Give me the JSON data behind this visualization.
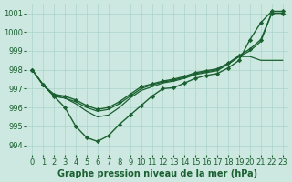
{
  "background_color": "#cce8e0",
  "grid_color": "#aad4cc",
  "line_color": "#1a6030",
  "marker_color": "#1a6030",
  "title": "Graphe pression niveau de la mer (hPa)",
  "xlim": [
    -0.5,
    23.5
  ],
  "ylim": [
    993.5,
    1001.5
  ],
  "yticks": [
    994,
    995,
    996,
    997,
    998,
    999,
    1000,
    1001
  ],
  "xticks": [
    0,
    1,
    2,
    3,
    4,
    5,
    6,
    7,
    8,
    9,
    10,
    11,
    12,
    13,
    14,
    15,
    16,
    17,
    18,
    19,
    20,
    21,
    22,
    23
  ],
  "series": [
    {
      "y": [
        998.0,
        997.2,
        996.6,
        996.0,
        995.0,
        994.4,
        994.2,
        994.5,
        995.1,
        995.6,
        996.1,
        996.6,
        997.0,
        997.05,
        997.3,
        997.55,
        997.7,
        997.8,
        998.1,
        998.5,
        999.6,
        1000.5,
        1001.1,
        1001.1
      ],
      "markers": true,
      "linewidth": 1.0
    },
    {
      "y": [
        998.0,
        997.2,
        996.6,
        996.5,
        996.2,
        995.8,
        995.5,
        995.6,
        996.0,
        996.5,
        996.9,
        997.1,
        997.3,
        997.4,
        997.55,
        997.75,
        997.85,
        997.95,
        998.3,
        998.7,
        998.7,
        998.5,
        998.5,
        998.5
      ],
      "markers": false,
      "linewidth": 0.9
    },
    {
      "y": [
        998.0,
        997.2,
        996.6,
        996.5,
        996.3,
        996.0,
        995.8,
        995.9,
        996.2,
        996.6,
        997.0,
        997.2,
        997.35,
        997.45,
        997.6,
        997.8,
        997.9,
        998.0,
        998.3,
        998.7,
        999.0,
        999.5,
        1001.0,
        1001.0
      ],
      "markers": false,
      "linewidth": 0.9
    },
    {
      "y": [
        998.0,
        997.2,
        996.7,
        996.6,
        996.4,
        996.1,
        995.9,
        996.0,
        996.3,
        996.7,
        997.1,
        997.25,
        997.4,
        997.5,
        997.65,
        997.85,
        997.95,
        998.05,
        998.35,
        998.75,
        999.1,
        999.6,
        1001.0,
        1001.0
      ],
      "markers": true,
      "linewidth": 1.0
    }
  ],
  "font_size_title": 7,
  "tick_font_size": 6
}
